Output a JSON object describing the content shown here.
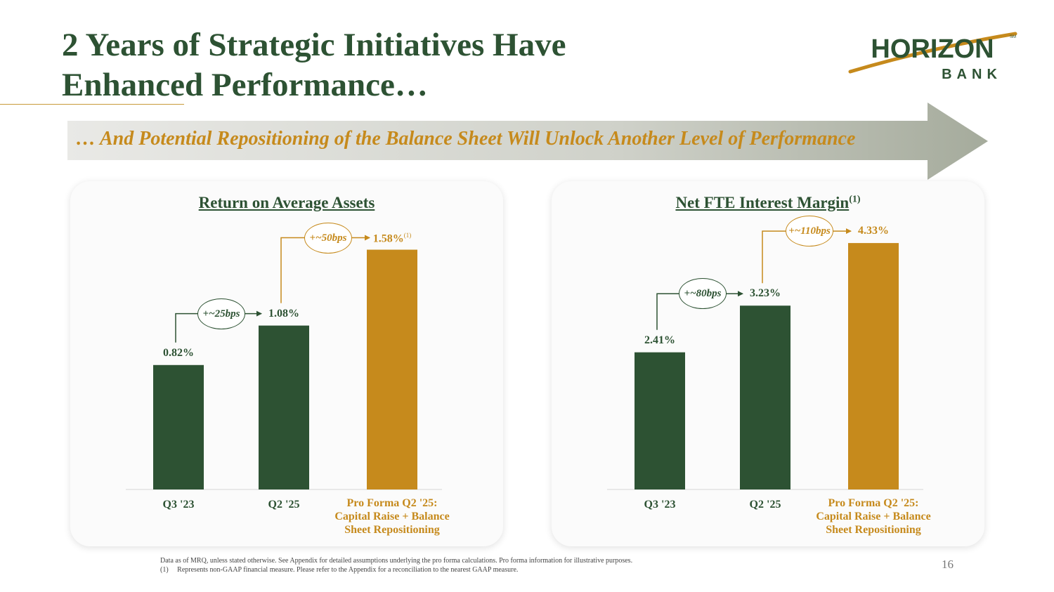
{
  "slide": {
    "title_line1": "2 Years of Strategic Initiatives Have",
    "title_line2": "Enhanced Performance…",
    "banner_text": "… And Potential Repositioning of the Balance Sheet Will Unlock Another Level of Performance",
    "footnote_line1": "Data as of MRQ, unless stated otherwise. See Appendix for detailed assumptions underlying the pro forma calculations. Pro forma information for illustrative purposes.",
    "footnote_line2_num": "(1)",
    "footnote_line2_text": "Represents non-GAAP financial measure. Please refer to the Appendix for a reconciliation to the nearest GAAP measure.",
    "page_number": "16"
  },
  "logo": {
    "name": "HORIZON",
    "sub": "BANK",
    "mark": "SM"
  },
  "colors": {
    "green": "#2d5233",
    "gold": "#c68a1c",
    "banner_gray": "#a5ab9c"
  },
  "chart_data": [
    {
      "type": "bar",
      "title": "Return on Average Assets",
      "title_sup": "",
      "categories": [
        "Q3 '23",
        "Q2 '25",
        "Pro Forma Q2 '25: Capital Raise + Balance Sheet Repositioning"
      ],
      "category_lines": [
        [
          "Q3 '23"
        ],
        [
          "Q2 '25"
        ],
        [
          "Pro Forma Q2 '25:",
          "Capital Raise + Balance",
          "Sheet Repositioning"
        ]
      ],
      "values": [
        0.82,
        1.08,
        1.58
      ],
      "value_labels": [
        "0.82%",
        "1.08%",
        "1.58%"
      ],
      "value_label_sups": [
        "",
        "",
        "(1)"
      ],
      "bar_colors": [
        "#2d5233",
        "#2d5233",
        "#c68a1c"
      ],
      "changes": [
        {
          "label": "+~25bps",
          "color": "green",
          "from": 0,
          "to": 1
        },
        {
          "label": "+~50bps",
          "color": "gold",
          "from": 1,
          "to": 2
        }
      ],
      "ylim": [
        0,
        1.8
      ]
    },
    {
      "type": "bar",
      "title": "Net FTE Interest Margin",
      "title_sup": "(1)",
      "categories": [
        "Q3 '23",
        "Q2 '25",
        "Pro Forma Q2 '25: Capital Raise + Balance Sheet Repositioning"
      ],
      "category_lines": [
        [
          "Q3 '23"
        ],
        [
          "Q2 '25"
        ],
        [
          "Pro Forma Q2 '25:",
          "Capital Raise + Balance",
          "Sheet Repositioning"
        ]
      ],
      "values": [
        2.41,
        3.23,
        4.33
      ],
      "value_labels": [
        "2.41%",
        "3.23%",
        "4.33%"
      ],
      "value_label_sups": [
        "",
        "",
        ""
      ],
      "bar_colors": [
        "#2d5233",
        "#2d5233",
        "#c68a1c"
      ],
      "changes": [
        {
          "label": "+~80bps",
          "color": "green",
          "from": 0,
          "to": 1
        },
        {
          "label": "+~110bps",
          "color": "gold",
          "from": 1,
          "to": 2
        }
      ],
      "ylim": [
        0,
        4.8
      ]
    }
  ]
}
